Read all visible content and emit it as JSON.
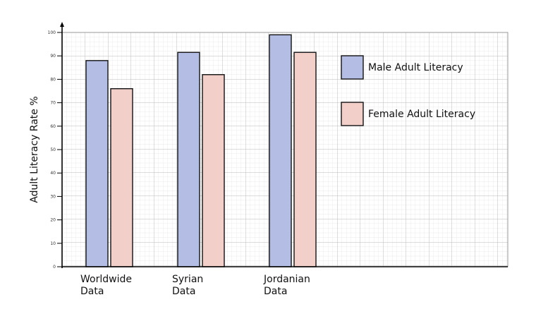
{
  "chart_data": {
    "type": "bar",
    "title": "",
    "xlabel": "",
    "ylabel": "Adult Literacy Rate %",
    "ylim": [
      0,
      100
    ],
    "yticks": [
      0,
      10,
      20,
      30,
      40,
      50,
      60,
      70,
      80,
      90,
      100
    ],
    "grid": true,
    "legend_position": "top-right",
    "categories": [
      [
        "Worldwide",
        "Data"
      ],
      [
        "Syrian",
        "Data"
      ],
      [
        "Jordanian",
        "Data"
      ]
    ],
    "series": [
      {
        "name": "Male Adult Literacy",
        "color": "#b4bde3",
        "values": [
          88,
          91.5,
          99
        ]
      },
      {
        "name": "Female Adult Literacy",
        "color": "#f3cfca",
        "values": [
          76,
          82,
          91.5
        ]
      }
    ]
  }
}
